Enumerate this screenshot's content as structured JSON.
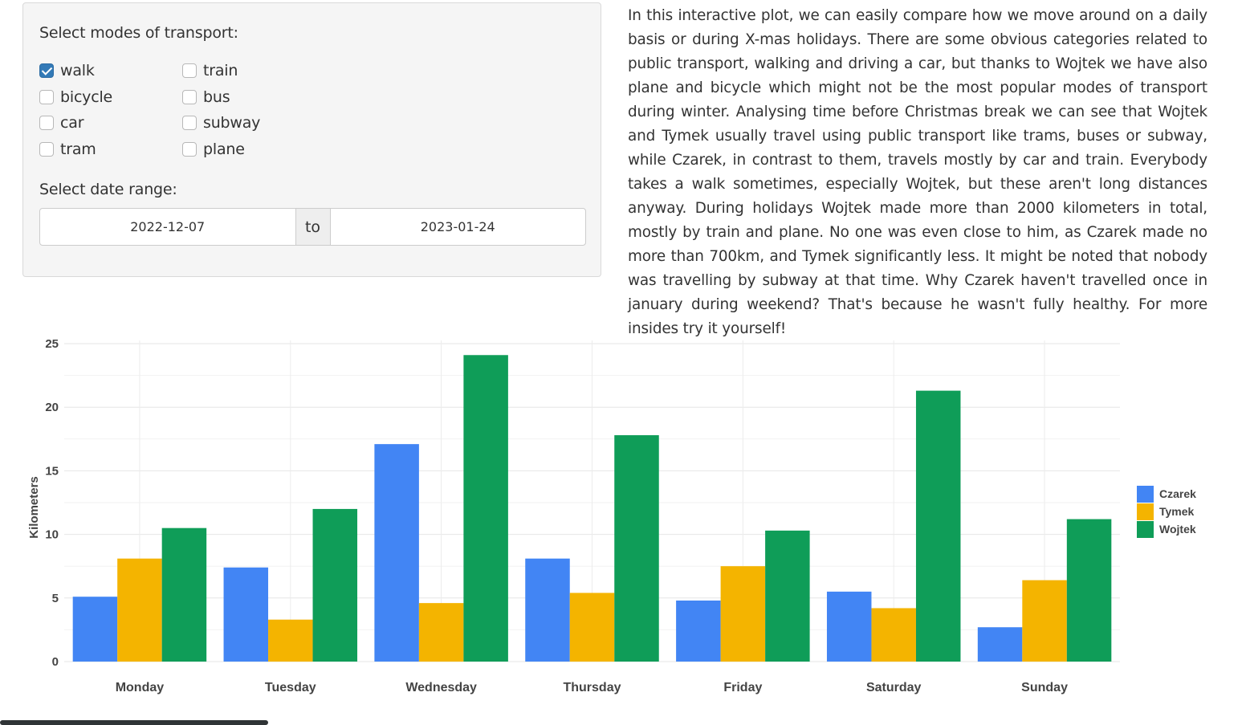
{
  "filters": {
    "modes_label": "Select modes of transport:",
    "modes": [
      {
        "label": "walk",
        "checked": true
      },
      {
        "label": "bicycle",
        "checked": false
      },
      {
        "label": "car",
        "checked": false
      },
      {
        "label": "tram",
        "checked": false
      },
      {
        "label": "train",
        "checked": false
      },
      {
        "label": "bus",
        "checked": false
      },
      {
        "label": "subway",
        "checked": false
      },
      {
        "label": "plane",
        "checked": false
      }
    ],
    "date_label": "Select date range:",
    "date_start": "2022-12-07",
    "date_sep": "to",
    "date_end": "2023-01-24"
  },
  "description": "In this interactive plot, we can easily compare how we move around on a daily basis or during X-mas holidays. There are some obvious categories related to public transport, walking and driving a car, but thanks to Wojtek we have also plane and bicycle which might not be the most popular modes of transport during winter. Analysing time before Christmas break we can see that Wojtek and Tymek usually travel using public transport like trams, buses or subway, while Czarek, in contrast to them, travels mostly by car and train. Everybody takes a walk sometimes, especially Wojtek, but these aren't long distances anyway. During holidays Wojtek made more than 2000 kilometers in total, mostly by train and plane. No one was even close to him, as Czarek made no more than 700km, and Tymek significantly less. It might be noted that nobody was travelling by subway at that time. Why Czarek haven't travelled once in january during weekend? That's because he wasn't fully healthy. For more insides try it yourself!",
  "chart_data": {
    "type": "bar",
    "title": "",
    "xlabel": "",
    "ylabel": "Kilometers",
    "categories": [
      "Monday",
      "Tuesday",
      "Wednesday",
      "Thursday",
      "Friday",
      "Saturday",
      "Sunday"
    ],
    "series": [
      {
        "name": "Czarek",
        "color": "#4285f4",
        "values": [
          5.1,
          7.4,
          17.1,
          8.1,
          4.8,
          5.5,
          2.7
        ]
      },
      {
        "name": "Tymek",
        "color": "#f4b400",
        "values": [
          8.1,
          3.3,
          4.6,
          5.4,
          7.5,
          4.2,
          6.4
        ]
      },
      {
        "name": "Wojtek",
        "color": "#0f9d58",
        "values": [
          10.5,
          12.0,
          24.1,
          17.8,
          10.3,
          21.3,
          11.2
        ]
      }
    ],
    "y_ticks": [
      "0",
      "5",
      "10",
      "15",
      "20",
      "25"
    ],
    "ylim": [
      0,
      25
    ],
    "grid": true,
    "legend": "right"
  }
}
